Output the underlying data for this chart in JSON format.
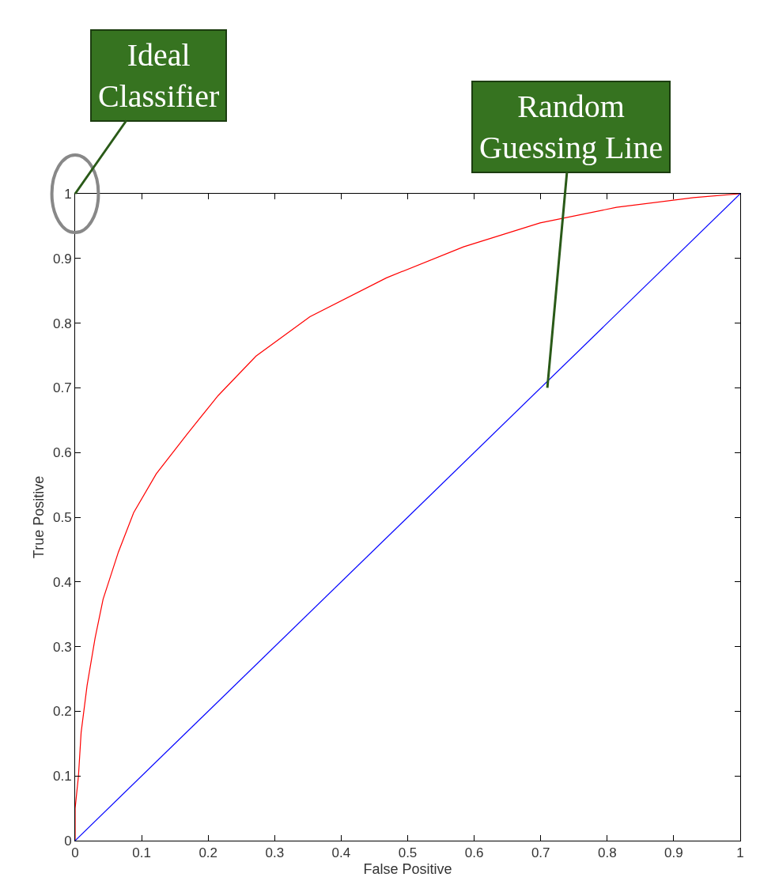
{
  "chart_data": {
    "type": "line",
    "xlabel": "False Positive",
    "ylabel": "True Positive",
    "xlim": [
      0,
      1
    ],
    "ylim": [
      0,
      1
    ],
    "xticks": [
      0,
      0.1,
      0.2,
      0.3,
      0.4,
      0.5,
      0.6,
      0.7,
      0.8,
      0.9,
      1
    ],
    "yticks": [
      0,
      0.1,
      0.2,
      0.3,
      0.4,
      0.5,
      0.6,
      0.7,
      0.8,
      0.9,
      1
    ],
    "marker": "none",
    "line_style": "solid",
    "series": [
      {
        "color": "#ff0000",
        "x": [
          0,
          0,
          0.005,
          0.009,
          0.018,
          0.03,
          0.042,
          0.065,
          0.088,
          0.122,
          0.168,
          0.215,
          0.272,
          0.353,
          0.468,
          0.584,
          0.699,
          0.814,
          0.93,
          1
        ],
        "values": [
          0,
          0.05,
          0.1,
          0.167,
          0.24,
          0.313,
          0.373,
          0.446,
          0.507,
          0.567,
          0.628,
          0.688,
          0.749,
          0.81,
          0.87,
          0.918,
          0.955,
          0.979,
          0.994,
          1
        ]
      },
      {
        "color": "#0000ff",
        "x": [
          0,
          1
        ],
        "values": [
          0,
          1
        ]
      }
    ],
    "annotations": [
      "Ideal\nClassifier",
      "Random\nGuessing Line"
    ]
  }
}
